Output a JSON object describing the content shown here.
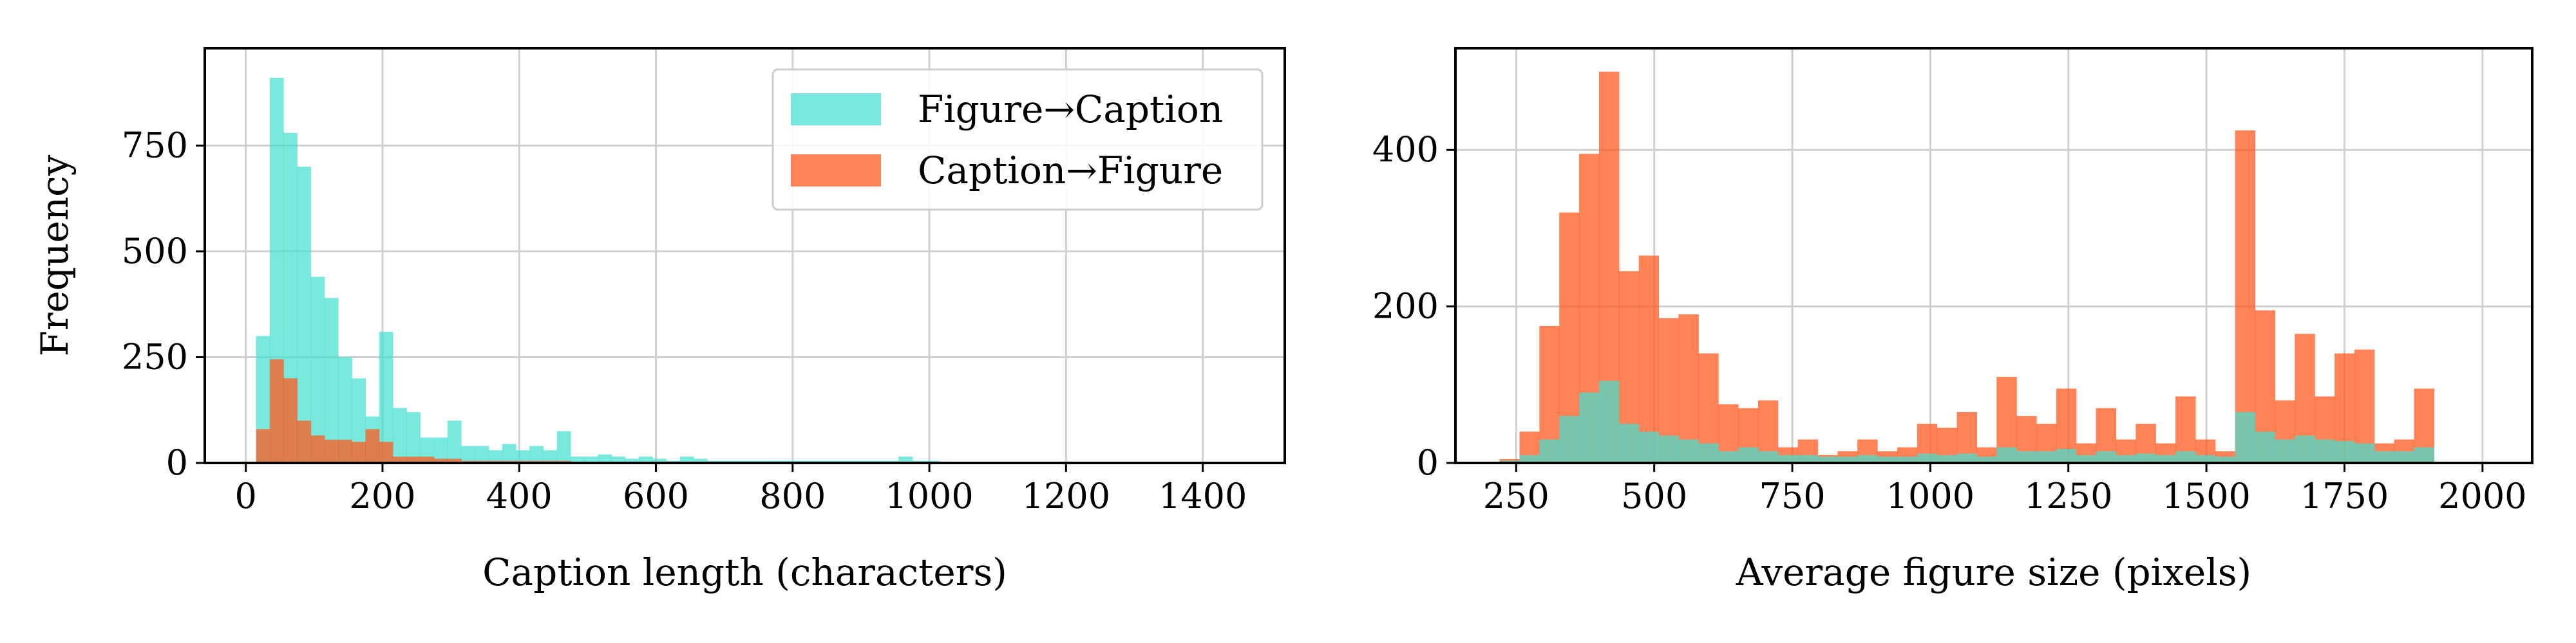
{
  "chart_data": [
    {
      "type": "bar",
      "chart_kind": "histogram",
      "xlabel": "Caption length (characters)",
      "ylabel": "Frequency",
      "xlim": [
        -60,
        1520
      ],
      "ylim": [
        0,
        980
      ],
      "xticks": [
        0,
        200,
        400,
        600,
        800,
        1000,
        1200,
        1400
      ],
      "yticks": [
        0,
        250,
        500,
        750
      ],
      "grid": true,
      "legend_position": "top-right",
      "bin_start": 15,
      "bin_width": 20,
      "series": [
        {
          "name": "Figure→Caption",
          "color": "#40E0D0",
          "opacity": 0.7,
          "values": [
            300,
            910,
            780,
            700,
            440,
            390,
            250,
            200,
            110,
            310,
            130,
            120,
            60,
            60,
            100,
            40,
            40,
            30,
            45,
            30,
            40,
            30,
            75,
            15,
            15,
            20,
            15,
            10,
            15,
            10,
            5,
            15,
            10,
            5,
            5,
            5,
            5,
            5,
            5,
            5,
            5,
            5,
            5,
            5,
            5,
            5,
            5,
            15,
            5,
            5,
            3,
            3,
            3,
            3,
            3,
            3,
            3,
            3,
            3,
            3,
            3,
            3,
            3,
            3,
            3,
            3,
            3,
            3,
            3,
            3
          ]
        },
        {
          "name": "Caption→Figure",
          "color": "#FF5A1F",
          "opacity": 0.75,
          "values": [
            80,
            245,
            200,
            100,
            65,
            55,
            55,
            50,
            80,
            50,
            15,
            15,
            15,
            10,
            10,
            5,
            5,
            5,
            5,
            5,
            5,
            5,
            5,
            0,
            0,
            0,
            0,
            0,
            0,
            0,
            0,
            0,
            0,
            0,
            0,
            0,
            0,
            0,
            0,
            0,
            0,
            0,
            0,
            0,
            0,
            0,
            0,
            0,
            0,
            0,
            0,
            0,
            0,
            0,
            0,
            0,
            0,
            0,
            0,
            0,
            0,
            0,
            0,
            0,
            0,
            0,
            0,
            0,
            0,
            0
          ]
        }
      ],
      "legend": [
        "Figure→Caption",
        "Caption→Figure"
      ]
    },
    {
      "type": "bar",
      "chart_kind": "histogram",
      "xlabel": "Average figure size (pixels)",
      "ylabel": "",
      "xlim": [
        140,
        2090
      ],
      "ylim": [
        0,
        530
      ],
      "xticks": [
        250,
        500,
        750,
        1000,
        1250,
        1500,
        1750,
        2000
      ],
      "yticks": [
        0,
        200,
        400
      ],
      "grid": true,
      "bin_start": 220,
      "bin_width": 36,
      "series": [
        {
          "name": "Caption→Figure",
          "color": "#FF5A1F",
          "opacity": 0.75,
          "values": [
            5,
            40,
            175,
            320,
            395,
            500,
            245,
            265,
            185,
            190,
            140,
            75,
            70,
            80,
            20,
            30,
            10,
            15,
            30,
            15,
            20,
            50,
            45,
            65,
            20,
            110,
            60,
            50,
            95,
            25,
            70,
            30,
            50,
            25,
            85,
            30,
            15,
            425,
            195,
            80,
            165,
            85,
            140,
            145,
            25,
            30,
            95
          ]
        },
        {
          "name": "Figure→Caption",
          "color": "#40E0D0",
          "opacity": 0.7,
          "values": [
            3,
            10,
            30,
            60,
            90,
            105,
            50,
            40,
            35,
            30,
            25,
            15,
            20,
            15,
            10,
            10,
            8,
            8,
            10,
            8,
            8,
            12,
            10,
            12,
            8,
            20,
            15,
            15,
            18,
            10,
            15,
            10,
            12,
            10,
            15,
            10,
            8,
            65,
            40,
            30,
            35,
            30,
            28,
            25,
            15,
            15,
            20
          ]
        }
      ]
    }
  ]
}
